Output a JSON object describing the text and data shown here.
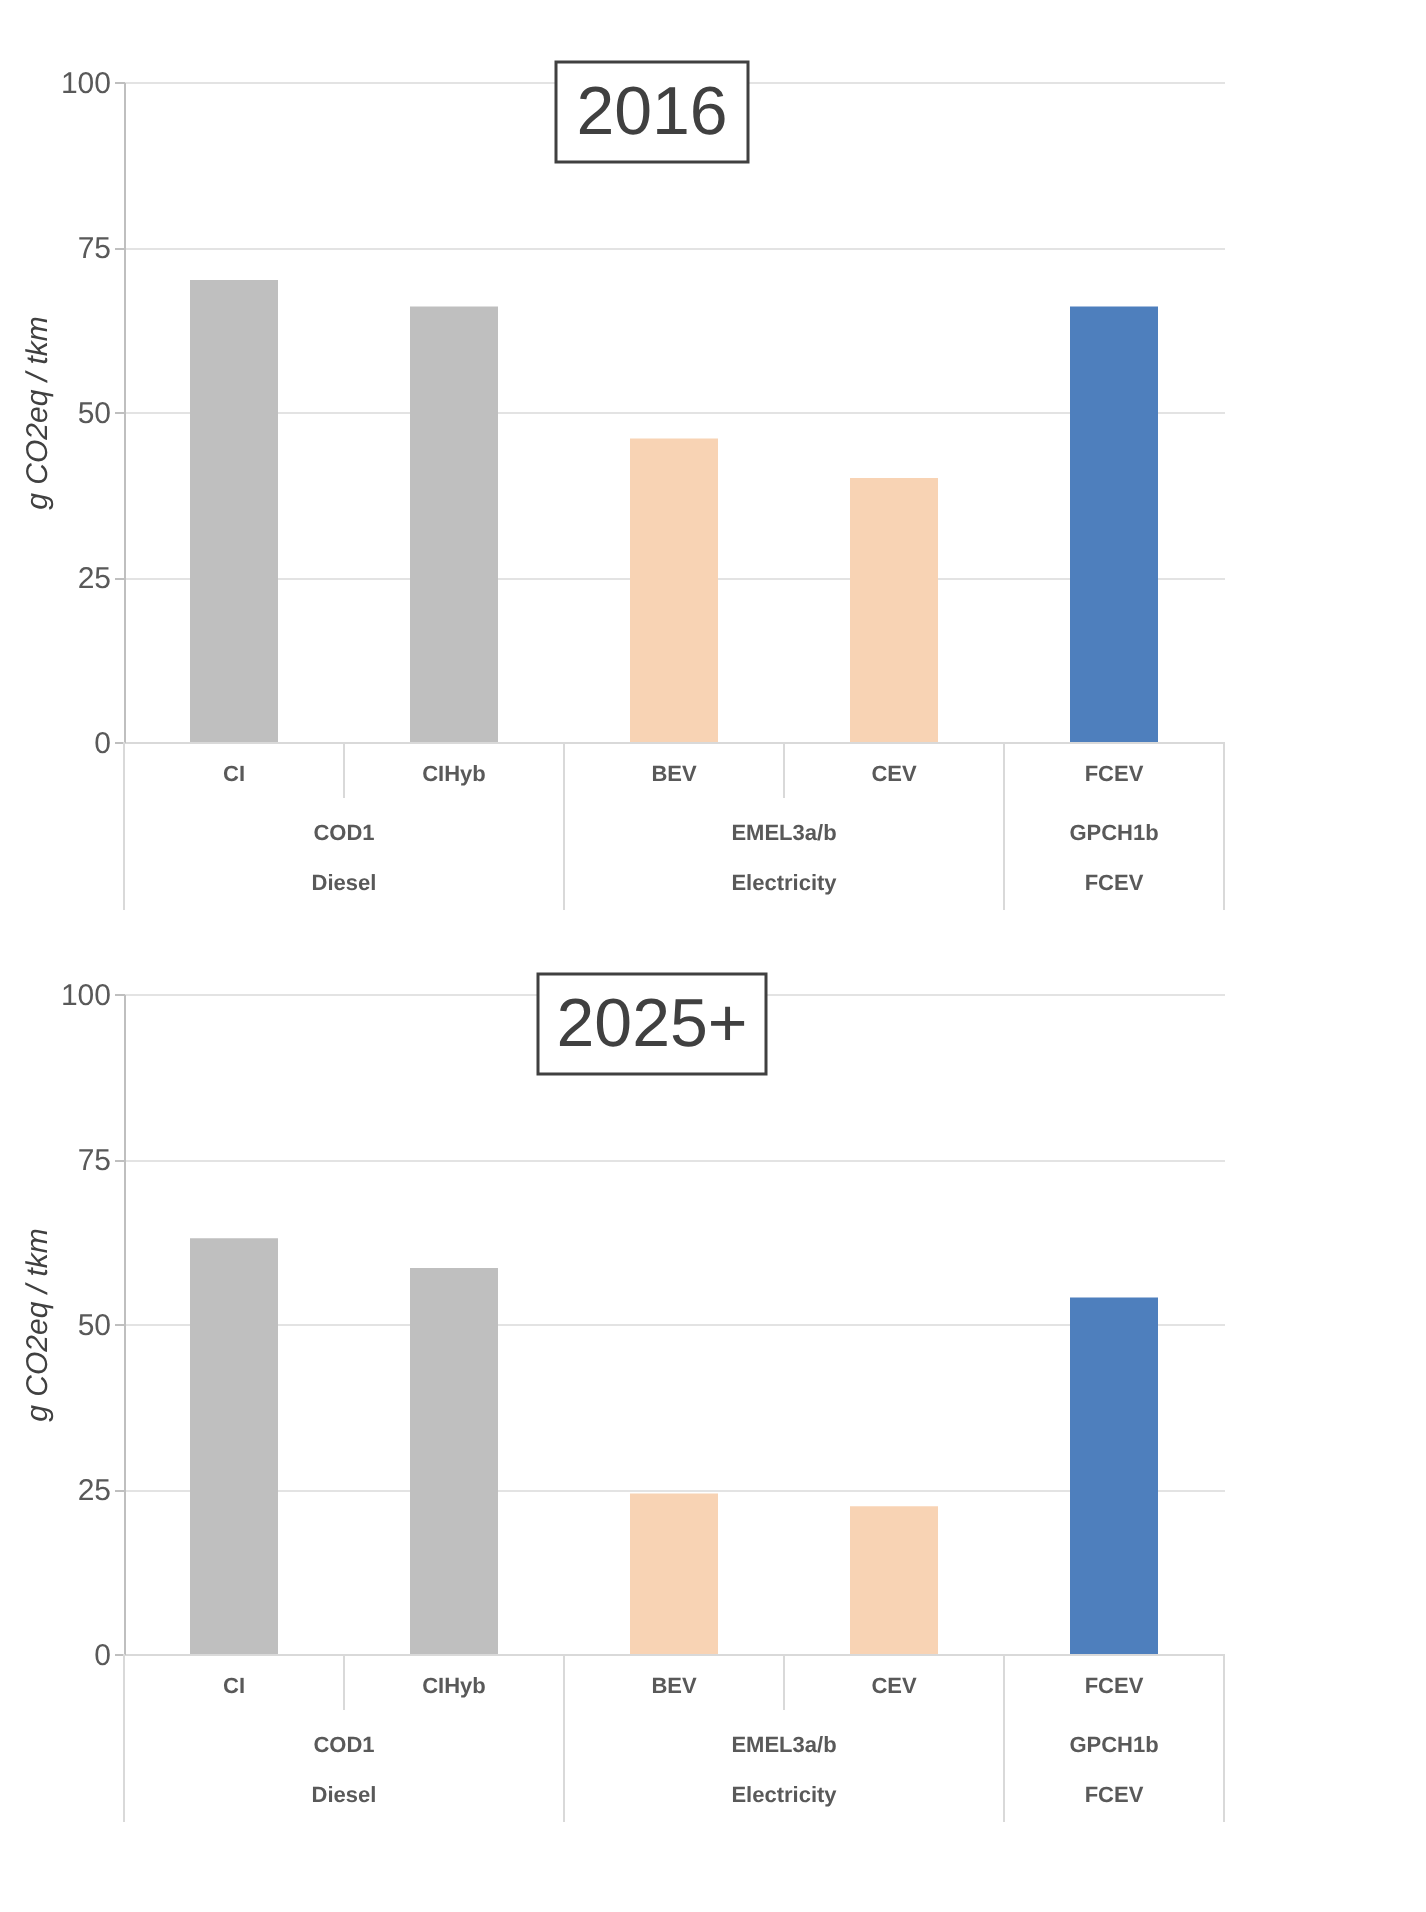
{
  "chart_data": [
    {
      "type": "bar",
      "title": "2016",
      "ylabel": "g CO2eq / tkm",
      "categories": [
        "CI",
        "CIHyb",
        "BEV",
        "CEV",
        "FCEV"
      ],
      "values": [
        70,
        66,
        46,
        40,
        66
      ],
      "colors": [
        "#bfbfbf",
        "#bfbfbf",
        "#f8d3b4",
        "#f8d3b4",
        "#4e7fbd"
      ],
      "ylim": [
        0,
        100
      ],
      "yticks": [
        0,
        25,
        50,
        75,
        100
      ],
      "grid": "y",
      "annotations": [
        "COD1",
        "EMEL3a/b",
        "GPCH1b",
        "Diesel",
        "Electricity",
        "FCEV"
      ]
    },
    {
      "type": "bar",
      "title": "2025+",
      "ylabel": "g CO2eq / tkm",
      "categories": [
        "CI",
        "CIHyb",
        "BEV",
        "CEV",
        "FCEV"
      ],
      "values": [
        63,
        58.5,
        24.3,
        22.4,
        54
      ],
      "colors": [
        "#bfbfbf",
        "#bfbfbf",
        "#f8d3b4",
        "#f8d3b4",
        "#4e7fbd"
      ],
      "ylim": [
        0,
        100
      ],
      "yticks": [
        0,
        25,
        50,
        75,
        100
      ],
      "grid": "y",
      "annotations": [
        "COD1",
        "EMEL3a/b",
        "GPCH1b",
        "Diesel",
        "Electricity",
        "FCEV"
      ]
    }
  ]
}
